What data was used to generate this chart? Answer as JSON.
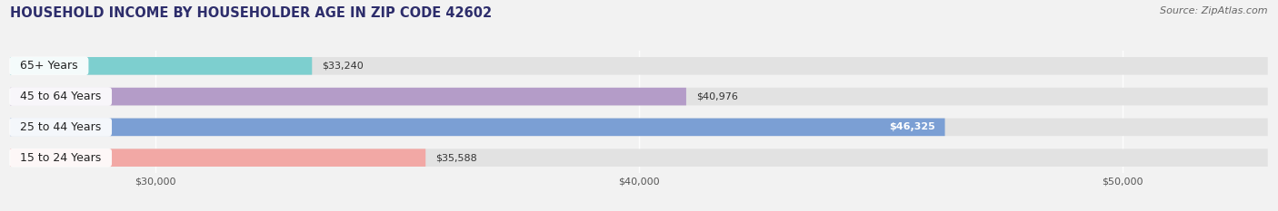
{
  "title": "HOUSEHOLD INCOME BY HOUSEHOLDER AGE IN ZIP CODE 42602",
  "source": "Source: ZipAtlas.com",
  "categories": [
    "15 to 24 Years",
    "25 to 44 Years",
    "45 to 64 Years",
    "65+ Years"
  ],
  "values": [
    35588,
    46325,
    40976,
    33240
  ],
  "bar_colors": [
    "#f2a8a5",
    "#7b9fd4",
    "#b49cc8",
    "#7dcfcf"
  ],
  "label_colors": [
    "#444444",
    "#ffffff",
    "#444444",
    "#444444"
  ],
  "xmin": 27000,
  "xmax": 53000,
  "xticks": [
    30000,
    40000,
    50000
  ],
  "xtick_labels": [
    "$30,000",
    "$40,000",
    "$50,000"
  ],
  "title_fontsize": 10.5,
  "source_fontsize": 8,
  "bar_label_fontsize": 8,
  "tick_fontsize": 8,
  "category_fontsize": 9,
  "bar_height": 0.58,
  "background_color": "#f2f2f2",
  "bar_background_color": "#e2e2e2",
  "title_color": "#2d2d6b",
  "source_color": "#666666"
}
